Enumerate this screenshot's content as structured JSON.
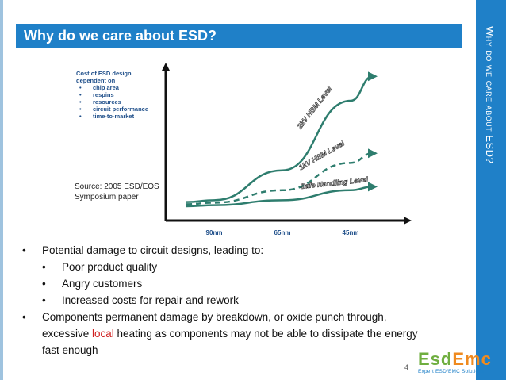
{
  "slide": {
    "title": "Why do we care about ESD?",
    "side_title": "Why do we care about ESD?",
    "page_number": "4"
  },
  "chart_data": {
    "type": "line",
    "legend_title_lines": [
      "Cost of ESD design",
      "dependent on"
    ],
    "legend_bullets": [
      "chip area",
      "respins",
      "resources",
      "circuit performance",
      "time-to-market"
    ],
    "categories": [
      "90nm",
      "65nm",
      "45nm"
    ],
    "series": [
      {
        "name": "2kV HBM Level",
        "style": "solid",
        "values": [
          0.5,
          1.7,
          4.5
        ]
      },
      {
        "name": "1kV HBM Level",
        "style": "dashed",
        "values": [
          0.4,
          0.9,
          2.0
        ]
      },
      {
        "name": "Safe Handling Level",
        "style": "solid",
        "values": [
          0.3,
          0.5,
          0.9
        ]
      }
    ],
    "ylim": [
      0,
      6
    ],
    "source": [
      "Source: 2005 ESD/EOS",
      "Symposium paper"
    ]
  },
  "bullets": {
    "b1": "Potential damage to circuit designs, leading to:",
    "sub1": "Poor product quality",
    "sub2": "Angry customers",
    "sub3": "Increased costs for repair and rework",
    "b2_line1": "Components permanent damage by breakdown, or oxide punch through,",
    "b2_line2_pre": "excessive ",
    "b2_line2_red": "local",
    "b2_line2_post": " heating as components may not be able to dissipate the energy",
    "b2_line3": "fast enough",
    "bullet_glyph": "•"
  },
  "logo": {
    "main_green": "Esd",
    "main_orange": "Emc",
    "tagline": "Expert ESD/EMC Solutions"
  },
  "colors": {
    "accent": "#1f80c8",
    "curve": "#2e7d6e",
    "red": "#d02020"
  }
}
